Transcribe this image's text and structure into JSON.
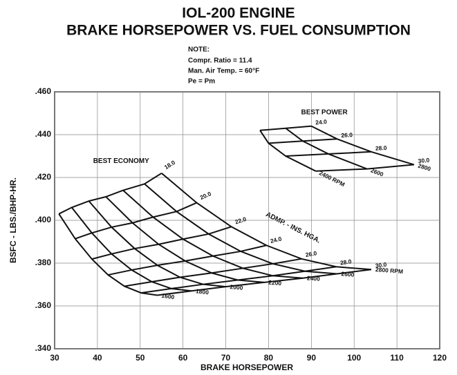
{
  "chart_data": {
    "type": "line",
    "title": [
      "IOL-200 ENGINE",
      "BRAKE HORSEPOWER VS. FUEL CONSUMPTION"
    ],
    "note": [
      "NOTE:",
      "Compr. Ratio = 11.4",
      "Man. Air Temp. = 60°F",
      "Pe = Pm"
    ],
    "xlabel": "BRAKE HORSEPOWER",
    "ylabel": "BSFC - LBS./BHP-HR.",
    "annotation": "ADMP. - INS. HGA.",
    "xlim": [
      30,
      120
    ],
    "xticks": [
      30,
      40,
      50,
      60,
      70,
      80,
      90,
      100,
      110,
      120
    ],
    "ylim": [
      0.34,
      0.46
    ],
    "yticks": [
      {
        "value": 0.34,
        "label": ".340"
      },
      {
        "value": 0.36,
        "label": ".360"
      },
      {
        "value": 0.38,
        "label": ".380"
      },
      {
        "value": 0.4,
        "label": ".400"
      },
      {
        "value": 0.42,
        "label": ".420"
      },
      {
        "value": 0.44,
        "label": ".440"
      },
      {
        "value": 0.46,
        "label": ".460"
      }
    ],
    "grid": true,
    "color": "#111111",
    "families": [
      {
        "name": "BEST ECONOMY",
        "map_labels": [
          "18.0",
          "20.0",
          "22.0",
          "24.0",
          "26.0",
          "28.0",
          "30.0"
        ],
        "series": [
          {
            "name": "1600",
            "x": [
              31,
              34.8,
              38.7,
              42.5,
              46.3,
              50.2,
              54
            ],
            "values": [
              0.403,
              0.3914,
              0.3819,
              0.3745,
              0.3692,
              0.3661,
              0.365
            ]
          },
          {
            "name": "1800",
            "x": [
              34,
              38.7,
              43.3,
              48,
              52.7,
              57.3,
              62
            ],
            "values": [
              0.406,
              0.3941,
              0.3843,
              0.3768,
              0.3713,
              0.3681,
              0.367
            ]
          },
          {
            "name": "2000",
            "x": [
              38,
              43.3,
              48.7,
              54,
              59.3,
              64.7,
              70
            ],
            "values": [
              0.409,
              0.3968,
              0.3868,
              0.379,
              0.3734,
              0.3701,
              0.369
            ]
          },
          {
            "name": "2200",
            "x": [
              42,
              48.2,
              54.3,
              60.5,
              66.7,
              72.8,
              79
            ],
            "values": [
              0.411,
              0.3988,
              0.3888,
              0.381,
              0.3754,
              0.3721,
              0.371
            ]
          },
          {
            "name": "2400",
            "x": [
              46,
              53,
              60,
              67,
              74,
              81,
              88
            ],
            "values": [
              0.414,
              0.4015,
              0.3912,
              0.3833,
              0.3776,
              0.3741,
              0.373
            ]
          },
          {
            "name": "2600",
            "x": [
              51,
              58.5,
              66,
              73.5,
              81,
              88.5,
              96
            ],
            "values": [
              0.417,
              0.4041,
              0.3936,
              0.3855,
              0.3797,
              0.3762,
              0.375
            ]
          },
          {
            "name": "2800 RPM",
            "x": [
              55,
              63.2,
              71.3,
              79.5,
              87.7,
              95.8,
              104
            ],
            "values": [
              0.422,
              0.4082,
              0.397,
              0.3883,
              0.382,
              0.3783,
              0.377
            ]
          }
        ]
      },
      {
        "name": "BEST POWER",
        "map_labels": [
          "24.0",
          "26.0",
          "28.0",
          "30.0"
        ],
        "series": [
          {
            "name": "2400 RPM",
            "x": [
              78,
              80,
              84,
              91
            ],
            "values": [
              0.442,
              0.436,
              0.43,
              0.423
            ]
          },
          {
            "name": "2600",
            "x": [
              84,
              88,
              94,
              103
            ],
            "values": [
              0.443,
              0.437,
              0.431,
              0.424
            ]
          },
          {
            "name": "2800",
            "x": [
              90,
              96,
              104,
              114
            ],
            "values": [
              0.444,
              0.438,
              0.432,
              0.426
            ]
          }
        ]
      }
    ]
  }
}
